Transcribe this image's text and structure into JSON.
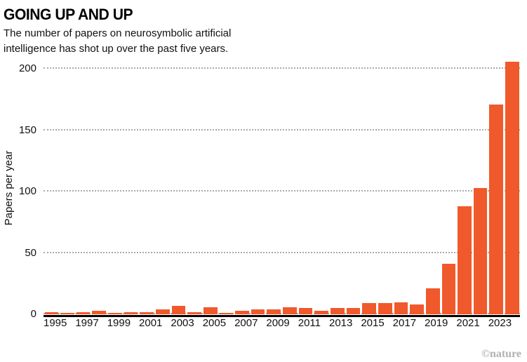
{
  "header": {
    "title": "GOING UP AND UP",
    "subtitle": "The number of papers on neurosymbolic artificial intelligence has shot up over the past five years."
  },
  "chart_data": {
    "type": "bar",
    "title": "GOING UP AND UP",
    "subtitle": "The number of papers on neurosymbolic artificial intelligence has shot up over the past five years.",
    "xlabel": "",
    "ylabel": "Papers per year",
    "ylim": [
      0,
      210
    ],
    "yticks": [
      0,
      50,
      100,
      150,
      200
    ],
    "grid": "dotted-horizontal",
    "legend": "none",
    "bar_color": "#F0592B",
    "categories": [
      1995,
      1996,
      1997,
      1998,
      1999,
      2000,
      2001,
      2002,
      2003,
      2004,
      2005,
      2006,
      2007,
      2008,
      2009,
      2010,
      2011,
      2012,
      2013,
      2014,
      2015,
      2016,
      2017,
      2018,
      2019,
      2020,
      2021,
      2022,
      2023,
      2024
    ],
    "values": [
      2,
      1,
      2,
      3,
      1,
      2,
      2,
      4,
      7,
      2,
      6,
      1,
      3,
      4,
      4,
      6,
      5,
      3,
      5,
      5,
      9,
      9,
      10,
      8,
      21,
      41,
      88,
      103,
      171,
      206
    ],
    "x_tick_labels": [
      "1995",
      "1997",
      "1999",
      "2001",
      "2003",
      "2005",
      "2007",
      "2009",
      "2011",
      "2013",
      "2015",
      "2017",
      "2019",
      "2021",
      "2023"
    ]
  },
  "footer": {
    "credit": "©nature"
  }
}
